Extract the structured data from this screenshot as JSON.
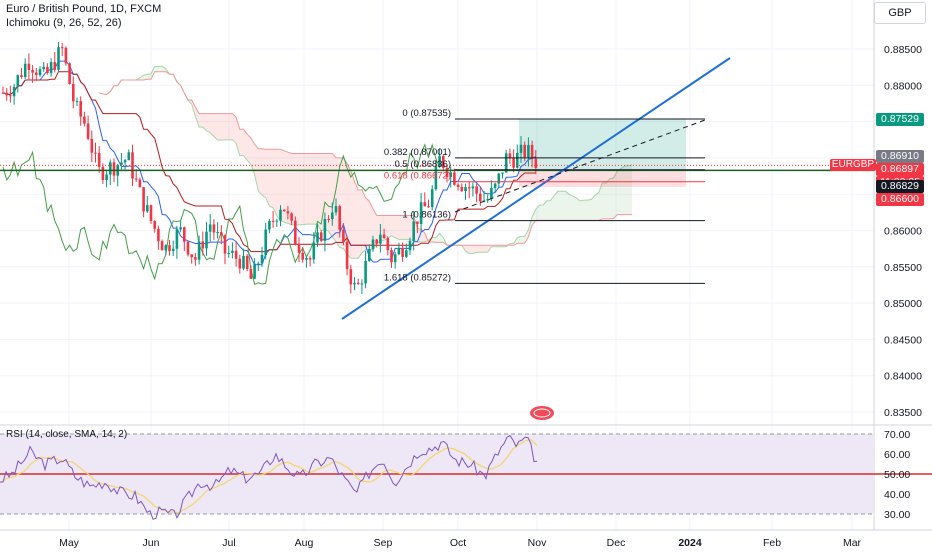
{
  "header": {
    "symbol_line": "Euro / British Pound, 1D, FXCM",
    "indicator": "Ichimoku (9, 26, 52, 26)",
    "currency": "GBP"
  },
  "price_axis": {
    "ticks": [
      "0.88500",
      "0.88000",
      "0.87500",
      "0.87000",
      "0.86500",
      "0.86000",
      "0.85500",
      "0.85000",
      "0.84500",
      "0.84000",
      "0.83500"
    ]
  },
  "time_axis": {
    "ticks": [
      "May",
      "Jun",
      "Jul",
      "Aug",
      "Sep",
      "Oct",
      "Nov",
      "Dec",
      "2024",
      "Feb",
      "Mar"
    ]
  },
  "price_tags": {
    "tp": "0.87529",
    "high": "0.86910",
    "close": "0.86897",
    "countdown": "11:00:25",
    "entry": "0.86829",
    "stop": "0.86600",
    "symbol": "EURGBP"
  },
  "fib_labels": {
    "f0": "0 (0.87535)",
    "f382": "0.382 (0.87001)",
    "f50": "0.5 (0.86836)",
    "f618": "0.618 (0.86672)",
    "f1": "1 (0.86136)",
    "f1618": "1.618 (0.85272)"
  },
  "rsi": {
    "title": "RSI (14, close, SMA, 14, 2)",
    "ticks": [
      "70.00",
      "60.00",
      "50.00",
      "40.00",
      "30.00"
    ]
  },
  "colors": {
    "up": "#089981",
    "down": "#f23645",
    "conversion": "#2962ff",
    "base": "#b71c1c",
    "lagging": "#43a047",
    "trendline": "#1e6fd9",
    "rsi_line": "#7e57c2",
    "rsi_sma": "#f5d56a",
    "rsi_band": "#ede7f6"
  },
  "chart_data": [
    {
      "type": "candlestick",
      "title": "Euro / British Pound, 1D, FXCM",
      "indicator": "Ichimoku (9, 26, 52, 26)",
      "x_axis_ticks": [
        "May",
        "Jun",
        "Jul",
        "Aug",
        "Sep",
        "Oct",
        "Nov",
        "Dec",
        "2024",
        "Feb",
        "Mar"
      ],
      "ylim": [
        0.832,
        0.891
      ],
      "last_price": 0.86897,
      "ohlc_sample": [
        {
          "t": "Apr",
          "close": 0.8795
        },
        {
          "t": "May",
          "close": 0.876
        },
        {
          "t": "Jun",
          "close": 0.859
        },
        {
          "t": "Jul",
          "close": 0.8575
        },
        {
          "t": "Aug",
          "close": 0.858
        },
        {
          "t": "Sep",
          "close": 0.857
        },
        {
          "t": "Oct",
          "close": 0.8664
        },
        {
          "t": "Nov",
          "close": 0.869
        }
      ],
      "fibonacci": [
        {
          "level": "0",
          "value": 0.87535
        },
        {
          "level": "0.382",
          "value": 0.87001
        },
        {
          "level": "0.5",
          "value": 0.86836
        },
        {
          "level": "0.618",
          "value": 0.86672
        },
        {
          "level": "1",
          "value": 0.86136
        },
        {
          "level": "1.618",
          "value": 0.85272
        }
      ],
      "horizontal_line": 0.86829,
      "position": {
        "entry": 0.86829,
        "target": 0.87529,
        "stop": 0.866
      }
    },
    {
      "type": "line",
      "title": "RSI (14, close, SMA, 14, 2)",
      "ylim": [
        25,
        72
      ],
      "levels": [
        70,
        50,
        30
      ],
      "last_value": 54
    }
  ]
}
